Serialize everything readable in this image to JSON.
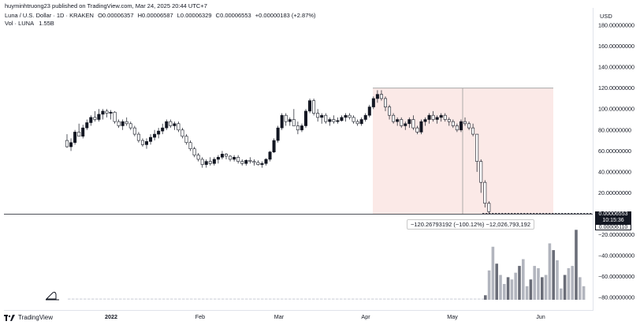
{
  "header": {
    "published": "huyminhtruong23 published on TradingView.com, Mar 24, 2025 20:44 UTC+7",
    "symbol": "Luna / U.S. Dollar · 1D · KRAKEN",
    "open": "O0.00006357",
    "high": "H0.00006587",
    "low": "L0.00006329",
    "close": "C0.00006553",
    "change": "+0.00000183 (+2.87%)",
    "vol_label": "Vol · LUNA",
    "vol_value": "1.55B",
    "currency": "USD"
  },
  "measure_label": "−120.26793192 (−100.12%) −12,026,793,192",
  "price_tags": {
    "last_price": "0.00006553",
    "countdown": "10:15:36",
    "prev": "0.00006110"
  },
  "footer": {
    "brand": "TradingView",
    "logo_icon": "tradingview-logo-icon"
  },
  "colors": {
    "up": "#131722",
    "down": "#ffffff",
    "measure_fill": "#fbe9e7",
    "measure_line": "#131722"
  },
  "chart_data": {
    "type": "candlestick",
    "yaxis_ticks": [
      "180.00000000",
      "160.00000000",
      "140.00000000",
      "120.00000000",
      "100.00000000",
      "80.00000000",
      "60.00000000",
      "40.00000000",
      "20.00000000",
      "0.00000000",
      "−20.00000000",
      "−40.00000000",
      "−60.00000000",
      "−80.00000000"
    ],
    "xaxis_ticks": [
      "2022",
      "Feb",
      "Mar",
      "Apr",
      "May",
      "Jun"
    ],
    "ylim": [
      -85,
      190
    ],
    "candles_ohlc": [
      [
        70,
        76,
        63,
        64
      ],
      [
        64,
        72,
        60,
        68
      ],
      [
        68,
        80,
        66,
        78
      ],
      [
        78,
        86,
        74,
        74
      ],
      [
        74,
        85,
        72,
        82
      ],
      [
        82,
        90,
        80,
        87
      ],
      [
        87,
        94,
        84,
        92
      ],
      [
        92,
        98,
        88,
        90
      ],
      [
        90,
        100,
        88,
        95
      ],
      [
        95,
        100,
        90,
        98
      ],
      [
        98,
        100,
        92,
        96
      ],
      [
        96,
        99,
        90,
        97
      ],
      [
        97,
        98,
        86,
        88
      ],
      [
        88,
        90,
        82,
        84
      ],
      [
        84,
        90,
        80,
        88
      ],
      [
        88,
        92,
        84,
        86
      ],
      [
        86,
        88,
        80,
        82
      ],
      [
        82,
        84,
        74,
        76
      ],
      [
        76,
        78,
        68,
        70
      ],
      [
        70,
        72,
        64,
        66
      ],
      [
        66,
        72,
        62,
        69
      ],
      [
        69,
        76,
        66,
        73
      ],
      [
        73,
        80,
        70,
        76
      ],
      [
        76,
        82,
        72,
        79
      ],
      [
        79,
        86,
        76,
        82
      ],
      [
        82,
        90,
        80,
        88
      ],
      [
        88,
        90,
        82,
        84
      ],
      [
        84,
        88,
        80,
        86
      ],
      [
        86,
        88,
        78,
        80
      ],
      [
        80,
        82,
        72,
        74
      ],
      [
        74,
        76,
        66,
        68
      ],
      [
        68,
        70,
        60,
        62
      ],
      [
        62,
        64,
        54,
        56
      ],
      [
        56,
        58,
        50,
        52
      ],
      [
        52,
        54,
        44,
        47
      ],
      [
        47,
        52,
        44,
        50
      ],
      [
        50,
        54,
        46,
        48
      ],
      [
        48,
        54,
        46,
        52
      ],
      [
        52,
        56,
        48,
        54
      ],
      [
        54,
        60,
        52,
        57
      ],
      [
        57,
        58,
        52,
        55
      ],
      [
        55,
        56,
        50,
        52
      ],
      [
        52,
        56,
        50,
        54
      ],
      [
        54,
        56,
        48,
        50
      ],
      [
        50,
        52,
        46,
        48
      ],
      [
        48,
        52,
        46,
        51
      ],
      [
        51,
        54,
        48,
        50
      ],
      [
        50,
        52,
        46,
        49
      ],
      [
        49,
        51,
        46,
        47
      ],
      [
        47,
        50,
        44,
        48
      ],
      [
        48,
        53,
        46,
        52
      ],
      [
        52,
        60,
        50,
        59
      ],
      [
        59,
        72,
        58,
        70
      ],
      [
        70,
        84,
        68,
        82
      ],
      [
        82,
        96,
        80,
        94
      ],
      [
        94,
        96,
        84,
        88
      ],
      [
        88,
        92,
        84,
        90
      ],
      [
        90,
        100,
        86,
        84
      ],
      [
        84,
        88,
        76,
        80
      ],
      [
        80,
        86,
        78,
        84
      ],
      [
        84,
        100,
        82,
        98
      ],
      [
        98,
        110,
        96,
        108
      ],
      [
        108,
        110,
        94,
        96
      ],
      [
        96,
        100,
        88,
        92
      ],
      [
        92,
        96,
        86,
        94
      ],
      [
        94,
        96,
        86,
        88
      ],
      [
        88,
        92,
        84,
        90
      ],
      [
        90,
        94,
        86,
        88
      ],
      [
        88,
        92,
        86,
        89
      ],
      [
        89,
        94,
        88,
        92
      ],
      [
        92,
        96,
        88,
        94
      ],
      [
        94,
        96,
        90,
        92
      ],
      [
        92,
        94,
        86,
        88
      ],
      [
        88,
        90,
        84,
        86
      ],
      [
        86,
        92,
        84,
        90
      ],
      [
        90,
        96,
        88,
        94
      ],
      [
        94,
        104,
        92,
        102
      ],
      [
        102,
        112,
        100,
        110
      ],
      [
        110,
        118,
        106,
        114
      ],
      [
        114,
        118,
        108,
        110
      ],
      [
        110,
        112,
        98,
        102
      ],
      [
        102,
        104,
        90,
        94
      ],
      [
        94,
        96,
        86,
        88
      ],
      [
        88,
        92,
        84,
        90
      ],
      [
        90,
        92,
        82,
        84
      ],
      [
        84,
        88,
        80,
        86
      ],
      [
        86,
        92,
        82,
        90
      ],
      [
        90,
        94,
        80,
        82
      ],
      [
        82,
        84,
        76,
        78
      ],
      [
        78,
        90,
        76,
        88
      ],
      [
        88,
        92,
        84,
        90
      ],
      [
        90,
        96,
        86,
        94
      ],
      [
        94,
        98,
        88,
        90
      ],
      [
        90,
        94,
        86,
        92
      ],
      [
        92,
        96,
        88,
        94
      ],
      [
        94,
        96,
        88,
        90
      ],
      [
        90,
        92,
        84,
        88
      ],
      [
        88,
        90,
        82,
        84
      ],
      [
        84,
        86,
        78,
        80
      ],
      [
        80,
        90,
        78,
        88
      ],
      [
        88,
        92,
        84,
        86
      ],
      [
        86,
        88,
        80,
        82
      ],
      [
        82,
        86,
        74,
        76
      ],
      [
        76,
        66,
        40,
        50
      ],
      [
        50,
        52,
        20,
        30
      ],
      [
        30,
        32,
        6,
        10
      ],
      [
        10,
        12,
        0,
        2
      ]
    ],
    "volume_bars": [
      4,
      26,
      47,
      32,
      22,
      14,
      20,
      18,
      24,
      30,
      36,
      12,
      18,
      30,
      28,
      20,
      22,
      50,
      44,
      35,
      10,
      22,
      28,
      30,
      62,
      20,
      12
    ],
    "measure_range": {
      "top": 120,
      "bottom": 0,
      "label": "−120.26793192 (−100.12%) −12,026,793,192"
    }
  }
}
